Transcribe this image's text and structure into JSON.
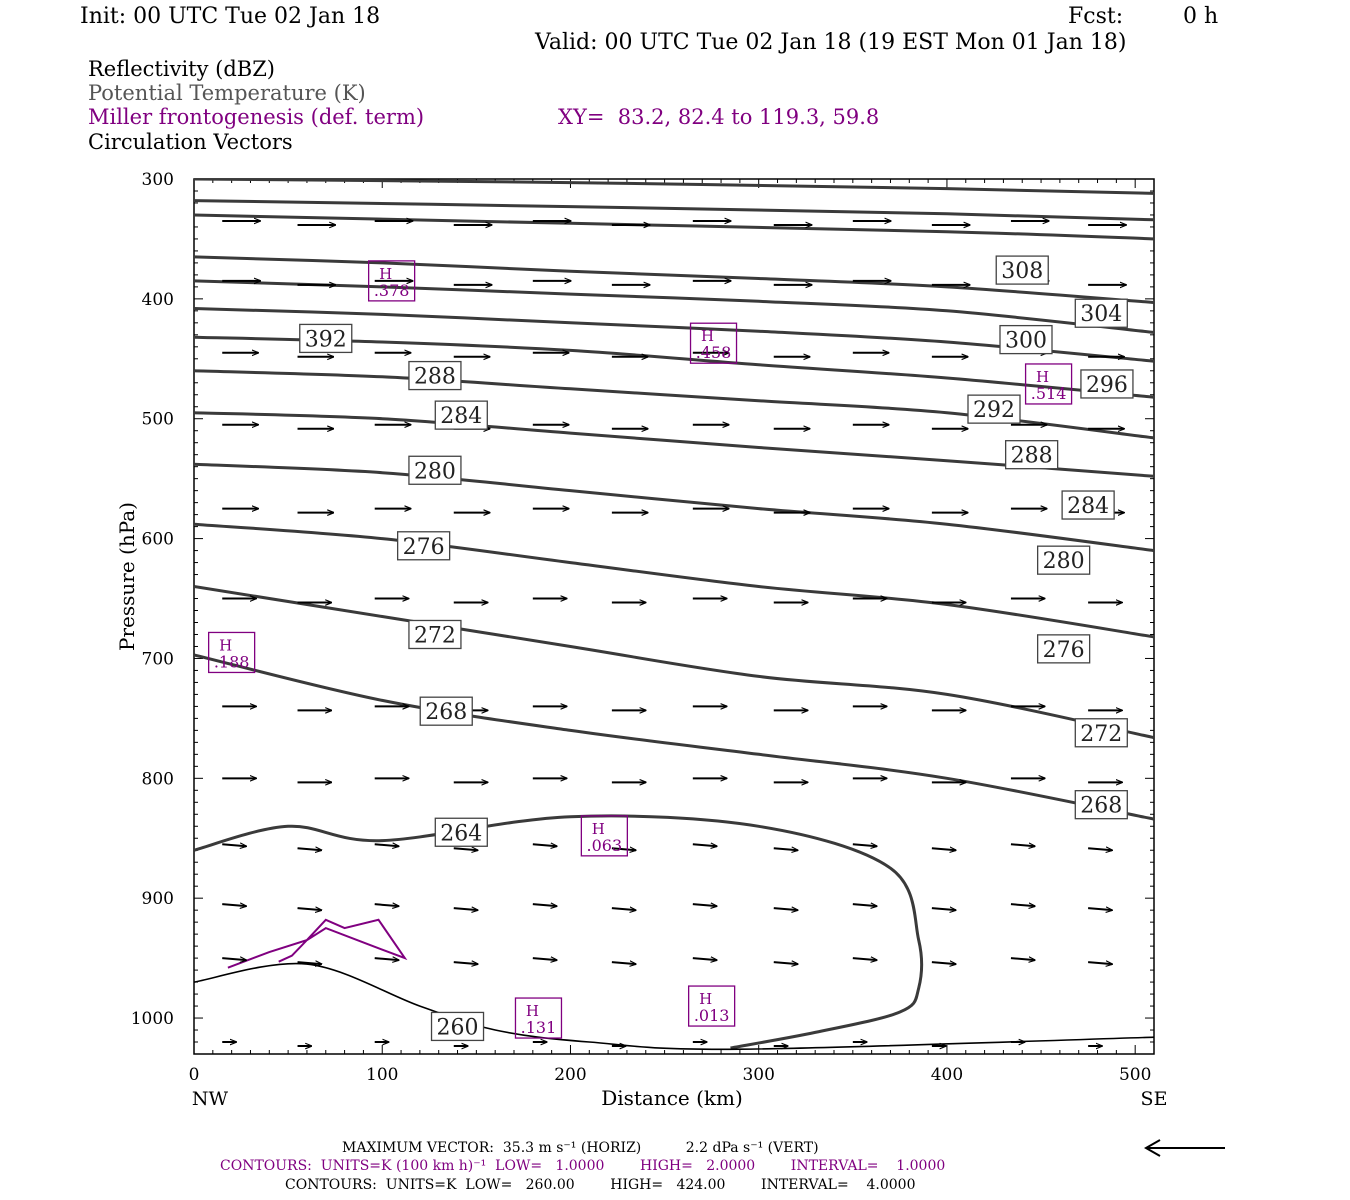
{
  "header": {
    "init": "Init: 00 UTC Tue 02 Jan 18",
    "fcst_label": "Fcst:",
    "fcst_value": "0 h",
    "valid": "Valid: 00 UTC Tue 02 Jan 18 (19 EST Mon 01 Jan 18)"
  },
  "legend": {
    "reflectivity": "Reflectivity (dBZ)",
    "theta": "Potential Temperature (K)",
    "miller": "Miller frontogenesis (def. term)",
    "xy": "XY=  83.2, 82.4 to 119.3, 59.8",
    "vectors": "Circulation Vectors"
  },
  "colors": {
    "frontogenesis": "#800080",
    "theta": "#3a3a3a",
    "text": "#000000"
  },
  "chart_data": {
    "type": "line",
    "title": "",
    "xlabel": "Distance (km)",
    "ylabel": "Pressure (hPa)",
    "xlim": [
      0,
      510
    ],
    "ylim": [
      1030,
      300
    ],
    "x_ticks": [
      0,
      100,
      200,
      300,
      400,
      500
    ],
    "y_ticks": [
      300,
      400,
      500,
      600,
      700,
      800,
      900,
      1000
    ],
    "x_end_labels": [
      "NW",
      "SE"
    ],
    "theta_contours": [
      {
        "label": "308",
        "label_at": [
          440,
          376
        ],
        "points": [
          [
            0,
            365
          ],
          [
            100,
            370
          ],
          [
            200,
            377
          ],
          [
            300,
            383
          ],
          [
            400,
            390
          ],
          [
            510,
            403
          ]
        ]
      },
      {
        "label": "304",
        "label_at": [
          482,
          412
        ],
        "points": [
          [
            0,
            385
          ],
          [
            100,
            390
          ],
          [
            200,
            396
          ],
          [
            300,
            402
          ],
          [
            400,
            410
          ],
          [
            510,
            428
          ]
        ]
      },
      {
        "label": "300",
        "label_at": [
          442,
          434
        ],
        "points": [
          [
            0,
            408
          ],
          [
            100,
            413
          ],
          [
            200,
            420
          ],
          [
            300,
            427
          ],
          [
            400,
            436
          ],
          [
            510,
            452
          ]
        ]
      },
      {
        "label": "392",
        "label_at": [
          70,
          433
        ],
        "points": [
          [
            0,
            432
          ],
          [
            100,
            436
          ],
          [
            200,
            443
          ],
          [
            300,
            455
          ],
          [
            400,
            466
          ],
          [
            510,
            482
          ]
        ]
      },
      {
        "label": "296",
        "label_at": [
          485,
          471
        ],
        "points": []
      },
      {
        "label": "292",
        "label_at": [
          425,
          492
        ],
        "points": [
          [
            0,
            460
          ],
          [
            100,
            465
          ],
          [
            200,
            475
          ],
          [
            300,
            485
          ],
          [
            400,
            495
          ],
          [
            510,
            516
          ]
        ]
      },
      {
        "label": "288",
        "label_at": [
          128,
          464
        ],
        "points": []
      },
      {
        "label": "288",
        "label_at": [
          445,
          530
        ],
        "points": [
          [
            0,
            495
          ],
          [
            100,
            500
          ],
          [
            200,
            512
          ],
          [
            300,
            524
          ],
          [
            400,
            535
          ],
          [
            510,
            548
          ]
        ]
      },
      {
        "label": "284",
        "label_at": [
          142,
          497
        ],
        "points": []
      },
      {
        "label": "284",
        "label_at": [
          475,
          572
        ],
        "points": [
          [
            0,
            538
          ],
          [
            100,
            545
          ],
          [
            200,
            560
          ],
          [
            300,
            575
          ],
          [
            400,
            588
          ],
          [
            510,
            610
          ]
        ]
      },
      {
        "label": "280",
        "label_at": [
          128,
          543
        ],
        "points": []
      },
      {
        "label": "280",
        "label_at": [
          462,
          618
        ],
        "points": [
          [
            0,
            588
          ],
          [
            100,
            600
          ],
          [
            200,
            620
          ],
          [
            300,
            640
          ],
          [
            400,
            655
          ],
          [
            510,
            682
          ]
        ]
      },
      {
        "label": "276",
        "label_at": [
          122,
          606
        ],
        "points": []
      },
      {
        "label": "276",
        "label_at": [
          462,
          692
        ],
        "points": [
          [
            0,
            640
          ],
          [
            100,
            665
          ],
          [
            200,
            690
          ],
          [
            300,
            715
          ],
          [
            400,
            730
          ],
          [
            510,
            766
          ]
        ]
      },
      {
        "label": "272",
        "label_at": [
          128,
          680
        ],
        "points": []
      },
      {
        "label": "272",
        "label_at": [
          482,
          762
        ],
        "points": [
          [
            0,
            697
          ],
          [
            100,
            735
          ],
          [
            200,
            760
          ],
          [
            300,
            780
          ],
          [
            400,
            800
          ],
          [
            510,
            834
          ]
        ]
      },
      {
        "label": "268",
        "label_at": [
          134,
          744
        ],
        "points": []
      },
      {
        "label": "268",
        "label_at": [
          482,
          822
        ],
        "points": []
      },
      {
        "label": "264",
        "label_at": [
          142,
          845
        ],
        "points": [
          [
            0,
            860
          ],
          [
            50,
            840
          ],
          [
            100,
            852
          ],
          [
            200,
            832
          ],
          [
            300,
            840
          ],
          [
            370,
            875
          ],
          [
            385,
            935
          ],
          [
            385,
            975
          ],
          [
            375,
            995
          ],
          [
            330,
            1012
          ],
          [
            285,
            1025
          ]
        ]
      },
      {
        "label": "260",
        "label_at": [
          140,
          1007
        ],
        "points": [
          [
            0,
            970
          ],
          [
            60,
            955
          ],
          [
            120,
            990
          ],
          [
            160,
            1010
          ],
          [
            210,
            1020
          ],
          [
            290,
            1026
          ],
          [
            510,
            1016
          ]
        ]
      }
    ],
    "frontogenesis_maxima": [
      {
        "label": "H",
        "value": ".378",
        "at": [
          105,
          385
        ]
      },
      {
        "label": "H",
        "value": ".458",
        "at": [
          276,
          437
        ]
      },
      {
        "label": "H",
        "value": ".514",
        "at": [
          454,
          471
        ]
      },
      {
        "label": "H",
        "value": ".188",
        "at": [
          20,
          695
        ]
      },
      {
        "label": "H",
        "value": ".063",
        "at": [
          218,
          848
        ]
      },
      {
        "label": "H",
        "value": ".131",
        "at": [
          183,
          1000
        ]
      },
      {
        "label": "H",
        "value": ".013",
        "at": [
          275,
          990
        ]
      }
    ],
    "vector_field": {
      "x_positions": [
        15,
        55,
        96,
        138,
        180,
        222,
        265,
        308,
        350,
        392,
        434,
        475
      ],
      "levels_hpa": [
        335,
        385,
        445,
        505,
        575,
        650,
        740,
        800,
        855,
        905,
        950,
        1020
      ]
    }
  },
  "footer": {
    "line1": "MAXIMUM VECTOR:  35.3 m s⁻¹ (HORIZ)          2.2 dPa s⁻¹ (VERT)",
    "line2": "CONTOURS:  UNITS=K (100 km h)⁻¹  LOW=   1.0000        HIGH=   2.0000        INTERVAL=    1.0000",
    "line3": "CONTOURS:  UNITS=K  LOW=   260.00        HIGH=   424.00        INTERVAL=    4.0000"
  }
}
